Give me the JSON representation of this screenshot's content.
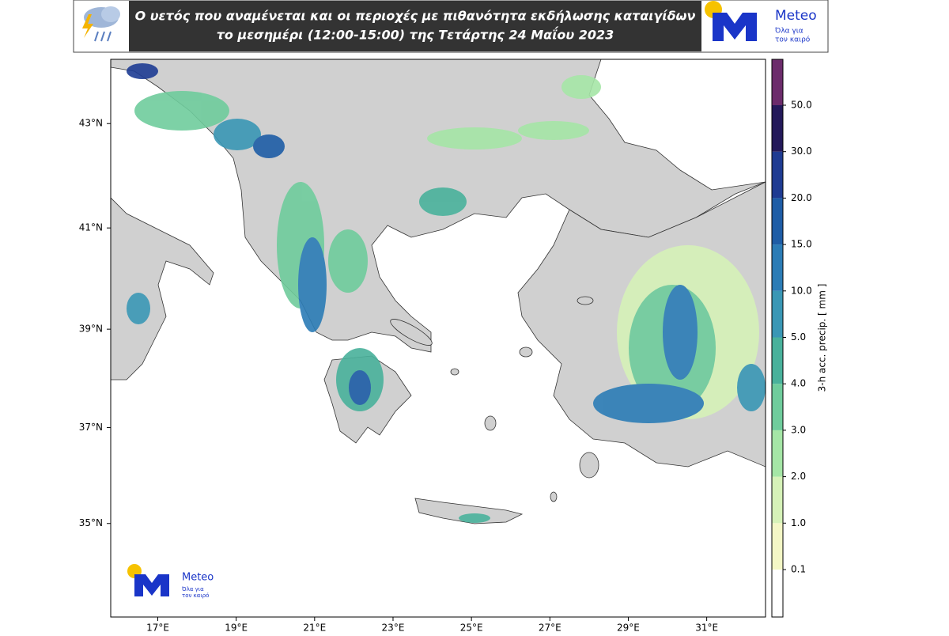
{
  "header": {
    "title": [
      "Ο υετός που αναμένεται και οι περιοχές με πιθανότητα εκδήλωσης καταιγίδων",
      "το μεσημέρι (12:00-15:00) της Τετάρτης 24 Μαΐου 2023"
    ],
    "logo": {
      "name": "Meteo",
      "tagline": [
        "Όλα για",
        "τον καιρό"
      ]
    }
  },
  "map": {
    "projection": "mercator",
    "xlim": [
      15.8,
      32.5
    ],
    "ylim": [
      33.0,
      44.2
    ],
    "xticks": [
      {
        "value": 17,
        "label": "17°E"
      },
      {
        "value": 19,
        "label": "19°E"
      },
      {
        "value": 21,
        "label": "21°E"
      },
      {
        "value": 23,
        "label": "23°E"
      },
      {
        "value": 25,
        "label": "25°E"
      },
      {
        "value": 27,
        "label": "27°E"
      },
      {
        "value": 29,
        "label": "29°E"
      },
      {
        "value": 31,
        "label": "31°E"
      }
    ],
    "yticks": [
      {
        "value": 35,
        "label": "35°N"
      },
      {
        "value": 37,
        "label": "37°N"
      },
      {
        "value": 39,
        "label": "39°N"
      },
      {
        "value": 41,
        "label": "41°N"
      },
      {
        "value": 43,
        "label": "43°N"
      }
    ],
    "logo": {
      "name": "Meteo",
      "tagline": [
        "Όλα για",
        "τον καιρό"
      ]
    }
  },
  "colorbar": {
    "label": "3-h acc. precip. [ mm ]",
    "ticks": [
      0.1,
      {
        "value": 1,
        "label": "1.0"
      },
      {
        "value": 2,
        "label": "2.0"
      },
      {
        "value": 3,
        "label": "3.0"
      },
      {
        "value": 4,
        "label": "4.0"
      },
      {
        "value": 5,
        "label": "5.0"
      },
      {
        "value": 10,
        "label": "10.0"
      },
      {
        "value": 15,
        "label": "15.0"
      },
      {
        "value": 20,
        "label": "20.0"
      },
      {
        "value": 30,
        "label": "30.0"
      },
      {
        "value": 50,
        "label": "50.0"
      }
    ],
    "colors": [
      "#ffffff",
      "#f4f7c6",
      "#d6f2b8",
      "#a5e6a6",
      "#6fcc9c",
      "#49b19b",
      "#3a97b5",
      "#2b7cb6",
      "#1e5da6",
      "#1f3b92",
      "#24195a",
      "#6c2b6b"
    ]
  }
}
